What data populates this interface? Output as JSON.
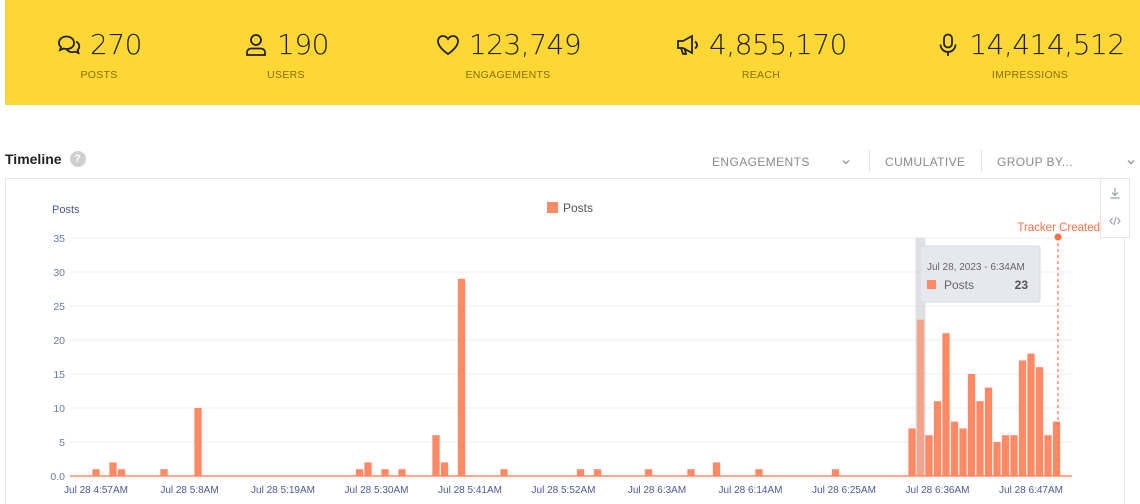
{
  "stats": [
    {
      "icon": "chat-bubbles-icon",
      "value": "270",
      "label": "POSTS"
    },
    {
      "icon": "user-icon",
      "value": "190",
      "label": "USERS"
    },
    {
      "icon": "heart-icon",
      "value": "123,749",
      "label": "ENGAGEMENTS"
    },
    {
      "icon": "megaphone-icon",
      "value": "4,855,170",
      "label": "REACH"
    },
    {
      "icon": "microphone-icon",
      "value": "14,414,512",
      "label": "IMPRESSIONS"
    }
  ],
  "timeline": {
    "title": "Timeline",
    "help": "?",
    "controls": {
      "metric": "ENGAGEMENTS",
      "cumulative": "CUMULATIVE",
      "group_by": "GROUP BY..."
    }
  },
  "chart_data": {
    "type": "bar",
    "ylabel": "Posts",
    "ylim": [
      0,
      35
    ],
    "yticks": [
      "0.0",
      "5",
      "10",
      "15",
      "20",
      "25",
      "30",
      "35"
    ],
    "legend": {
      "label": "Posts",
      "position": "top-center",
      "color": "#ff8a65"
    },
    "x_tick_labels": [
      "Jul 28 4:57AM",
      "Jul 28 5:8AM",
      "Jul 28 5:19AM",
      "Jul 28 5:30AM",
      "Jul 28 5:41AM",
      "Jul 28 5:52AM",
      "Jul 28 6:3AM",
      "Jul 28 6:14AM",
      "Jul 28 6:25AM",
      "Jul 28 6:36AM",
      "Jul 28 6:47AM"
    ],
    "series": [
      {
        "name": "Posts",
        "color": "#ff8a65",
        "points": [
          {
            "t": "4:57",
            "v": 1
          },
          {
            "t": "4:59",
            "v": 2
          },
          {
            "t": "5:00",
            "v": 1
          },
          {
            "t": "5:5",
            "v": 1
          },
          {
            "t": "5:9",
            "v": 10
          },
          {
            "t": "5:28",
            "v": 1
          },
          {
            "t": "5:29",
            "v": 2
          },
          {
            "t": "5:31",
            "v": 1
          },
          {
            "t": "5:33",
            "v": 1
          },
          {
            "t": "5:37",
            "v": 6
          },
          {
            "t": "5:38",
            "v": 2
          },
          {
            "t": "5:40",
            "v": 29
          },
          {
            "t": "5:45",
            "v": 1
          },
          {
            "t": "5:54",
            "v": 1
          },
          {
            "t": "5:56",
            "v": 1
          },
          {
            "t": "6:2",
            "v": 1
          },
          {
            "t": "6:7",
            "v": 1
          },
          {
            "t": "6:10",
            "v": 2
          },
          {
            "t": "6:15",
            "v": 1
          },
          {
            "t": "6:24",
            "v": 1
          },
          {
            "t": "6:33",
            "v": 7
          },
          {
            "t": "6:34",
            "v": 23
          },
          {
            "t": "6:35",
            "v": 6
          },
          {
            "t": "6:36",
            "v": 11
          },
          {
            "t": "6:37",
            "v": 21
          },
          {
            "t": "6:38",
            "v": 8
          },
          {
            "t": "6:39",
            "v": 7
          },
          {
            "t": "6:40",
            "v": 15
          },
          {
            "t": "6:41",
            "v": 11
          },
          {
            "t": "6:42",
            "v": 13
          },
          {
            "t": "6:43",
            "v": 5
          },
          {
            "t": "6:44",
            "v": 6
          },
          {
            "t": "6:45",
            "v": 6
          },
          {
            "t": "6:46",
            "v": 17
          },
          {
            "t": "6:47",
            "v": 18
          },
          {
            "t": "6:48",
            "v": 16
          },
          {
            "t": "6:49",
            "v": 6
          },
          {
            "t": "6:50",
            "v": 8
          }
        ]
      }
    ],
    "tooltip": {
      "date": "Jul 28, 2023 - 6:34AM",
      "series": "Posts",
      "value": "23"
    },
    "annotation": {
      "label": "Tracker Created",
      "color": "#ff7043"
    }
  }
}
